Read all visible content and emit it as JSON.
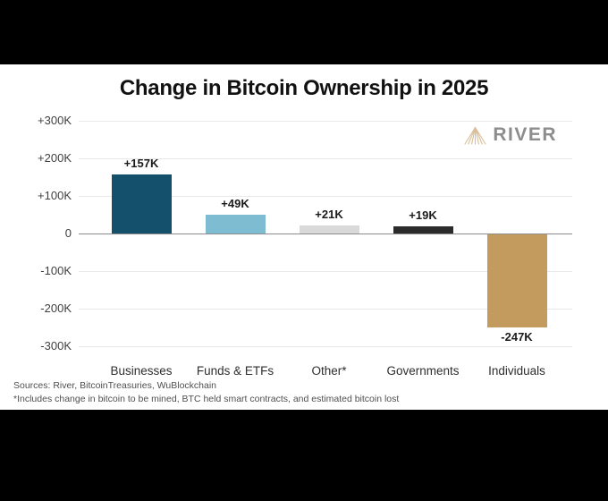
{
  "chart_data": {
    "type": "bar",
    "title": "Change in Bitcoin Ownership in 2025",
    "categories": [
      "Businesses",
      "Funds & ETFs",
      "Other*",
      "Governments",
      "Individuals"
    ],
    "values": [
      157000,
      49000,
      21000,
      19000,
      -247000
    ],
    "value_labels": [
      "+157K",
      "+49K",
      "+21K",
      "+19K",
      "-247K"
    ],
    "bar_colors": [
      "#14506B",
      "#7EBDD1",
      "#D9D9D9",
      "#2B2B2B",
      "#C49B5E"
    ],
    "ylim": [
      -300000,
      300000
    ],
    "yticks": [
      {
        "value": 300000,
        "label": "+300K"
      },
      {
        "value": 200000,
        "label": "+200K"
      },
      {
        "value": 100000,
        "label": "+100K"
      },
      {
        "value": 0,
        "label": "0"
      },
      {
        "value": -100000,
        "label": "-100K"
      },
      {
        "value": -200000,
        "label": "-200K"
      },
      {
        "value": -300000,
        "label": "-300K"
      }
    ],
    "grid": true,
    "legend": "none",
    "xlabel": "",
    "ylabel": ""
  },
  "branding": {
    "logo_text": "RIVER",
    "logo_icon": "river-mountain-icon",
    "text_color": "#8D8D8D",
    "icon_color": "#D8BF99"
  },
  "footer": {
    "sources": "Sources: River, BitcoinTreasuries, WuBlockchain",
    "footnote": "*Includes change in bitcoin to be mined, BTC held smart contracts, and estimated bitcoin lost"
  }
}
